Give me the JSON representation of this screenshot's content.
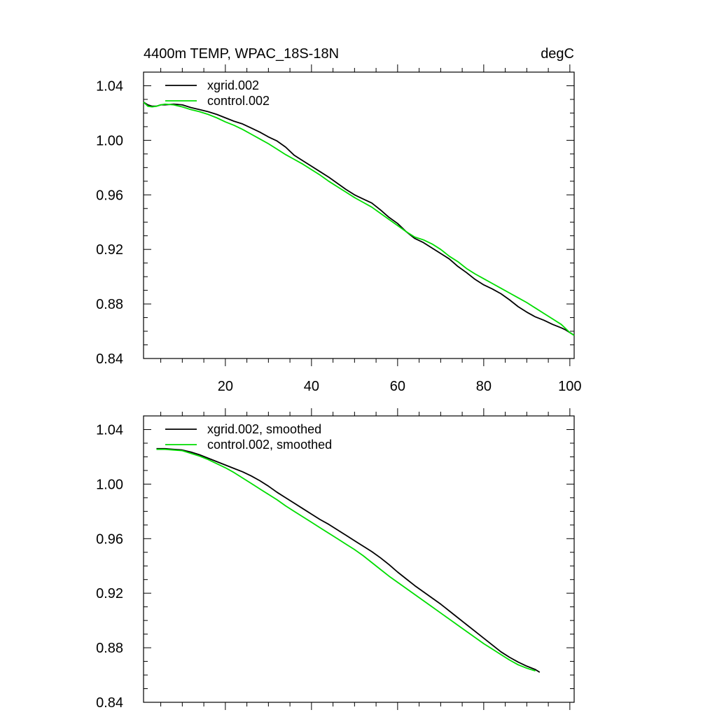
{
  "chart_data": [
    {
      "type": "line",
      "title": "4400m TEMP, WPAC_18S-18N",
      "units": "degC",
      "xlim": [
        1,
        101
      ],
      "ylim": [
        0.84,
        1.05
      ],
      "yticks": [
        "0.84",
        "0.88",
        "0.92",
        "0.96",
        "1.00",
        "1.04"
      ],
      "xticks": [
        "20",
        "40",
        "60",
        "80",
        "100"
      ],
      "legend_position": "top-left",
      "series": [
        {
          "name": "xgrid.002",
          "color": "#000000",
          "points": [
            [
              1,
              1.028
            ],
            [
              2,
              1.026
            ],
            [
              3,
              1.025
            ],
            [
              4,
              1.025
            ],
            [
              5,
              1.026
            ],
            [
              6,
              1.026
            ],
            [
              8,
              1.0265
            ],
            [
              10,
              1.026
            ],
            [
              12,
              1.024
            ],
            [
              14,
              1.0225
            ],
            [
              16,
              1.021
            ],
            [
              18,
              1.019
            ],
            [
              20,
              1.0165
            ],
            [
              22,
              1.014
            ],
            [
              24,
              1.012
            ],
            [
              26,
              1.009
            ],
            [
              28,
              1.006
            ],
            [
              30,
              1.0025
            ],
            [
              32,
              0.9995
            ],
            [
              34,
              0.995
            ],
            [
              36,
              0.989
            ],
            [
              38,
              0.985
            ],
            [
              40,
              0.981
            ],
            [
              42,
              0.977
            ],
            [
              44,
              0.973
            ],
            [
              46,
              0.9685
            ],
            [
              48,
              0.964
            ],
            [
              50,
              0.96
            ],
            [
              52,
              0.957
            ],
            [
              54,
              0.954
            ],
            [
              56,
              0.949
            ],
            [
              58,
              0.9435
            ],
            [
              60,
              0.939
            ],
            [
              62,
              0.933
            ],
            [
              64,
              0.928
            ],
            [
              66,
              0.925
            ],
            [
              68,
              0.921
            ],
            [
              70,
              0.917
            ],
            [
              72,
              0.913
            ],
            [
              74,
              0.9075
            ],
            [
              76,
              0.903
            ],
            [
              78,
              0.898
            ],
            [
              80,
              0.894
            ],
            [
              82,
              0.891
            ],
            [
              84,
              0.8875
            ],
            [
              86,
              0.883
            ],
            [
              88,
              0.878
            ],
            [
              90,
              0.874
            ],
            [
              92,
              0.8705
            ],
            [
              94,
              0.868
            ],
            [
              96,
              0.865
            ],
            [
              98,
              0.8625
            ],
            [
              99,
              0.861
            ],
            [
              100,
              0.859
            ],
            [
              101,
              0.857
            ]
          ]
        },
        {
          "name": "control.002",
          "color": "#00dd00",
          "points": [
            [
              1,
              1.028
            ],
            [
              2,
              1.025
            ],
            [
              3,
              1.0245
            ],
            [
              4,
              1.025
            ],
            [
              5,
              1.026
            ],
            [
              6,
              1.0265
            ],
            [
              8,
              1.026
            ],
            [
              10,
              1.0245
            ],
            [
              12,
              1.0225
            ],
            [
              14,
              1.021
            ],
            [
              16,
              1.019
            ],
            [
              18,
              1.0165
            ],
            [
              20,
              1.0135
            ],
            [
              22,
              1.011
            ],
            [
              24,
              1.008
            ],
            [
              26,
              1.0045
            ],
            [
              28,
              1.001
            ],
            [
              30,
              0.9975
            ],
            [
              32,
              0.9935
            ],
            [
              34,
              0.9895
            ],
            [
              36,
              0.986
            ],
            [
              38,
              0.9825
            ],
            [
              40,
              0.9785
            ],
            [
              42,
              0.9745
            ],
            [
              44,
              0.97
            ],
            [
              46,
              0.966
            ],
            [
              48,
              0.962
            ],
            [
              50,
              0.958
            ],
            [
              52,
              0.9545
            ],
            [
              54,
              0.951
            ],
            [
              56,
              0.9465
            ],
            [
              58,
              0.942
            ],
            [
              60,
              0.9375
            ],
            [
              62,
              0.933
            ],
            [
              64,
              0.929
            ],
            [
              66,
              0.927
            ],
            [
              68,
              0.924
            ],
            [
              70,
              0.92
            ],
            [
              72,
              0.915
            ],
            [
              74,
              0.911
            ],
            [
              76,
              0.906
            ],
            [
              78,
              0.902
            ],
            [
              80,
              0.8985
            ],
            [
              82,
              0.895
            ],
            [
              84,
              0.8915
            ],
            [
              86,
              0.888
            ],
            [
              88,
              0.8845
            ],
            [
              90,
              0.881
            ],
            [
              92,
              0.877
            ],
            [
              94,
              0.873
            ],
            [
              96,
              0.869
            ],
            [
              98,
              0.865
            ],
            [
              99,
              0.862
            ],
            [
              100,
              0.859
            ],
            [
              101,
              0.857
            ]
          ]
        }
      ]
    },
    {
      "type": "line",
      "xlim": [
        1,
        101
      ],
      "ylim": [
        0.84,
        1.05
      ],
      "yticks": [
        "0.84",
        "0.88",
        "0.92",
        "0.96",
        "1.00",
        "1.04"
      ],
      "legend_position": "top-left",
      "series": [
        {
          "name": "xgrid.002, smoothed",
          "color": "#000000",
          "points": [
            [
              4,
              1.026
            ],
            [
              6,
              1.026
            ],
            [
              8,
              1.0255
            ],
            [
              10,
              1.025
            ],
            [
              12,
              1.0235
            ],
            [
              14,
              1.0215
            ],
            [
              16,
              1.019
            ],
            [
              18,
              1.0165
            ],
            [
              20,
              1.014
            ],
            [
              22,
              1.0115
            ],
            [
              24,
              1.009
            ],
            [
              26,
              1.006
            ],
            [
              28,
              1.0025
            ],
            [
              30,
              0.9985
            ],
            [
              32,
              0.994
            ],
            [
              34,
              0.99
            ],
            [
              36,
              0.986
            ],
            [
              38,
              0.982
            ],
            [
              40,
              0.978
            ],
            [
              42,
              0.974
            ],
            [
              44,
              0.9705
            ],
            [
              46,
              0.9665
            ],
            [
              48,
              0.9625
            ],
            [
              50,
              0.9585
            ],
            [
              52,
              0.9545
            ],
            [
              54,
              0.9505
            ],
            [
              56,
              0.946
            ],
            [
              58,
              0.941
            ],
            [
              60,
              0.9355
            ],
            [
              62,
              0.9305
            ],
            [
              64,
              0.9255
            ],
            [
              66,
              0.921
            ],
            [
              68,
              0.9165
            ],
            [
              70,
              0.912
            ],
            [
              72,
              0.907
            ],
            [
              74,
              0.902
            ],
            [
              76,
              0.897
            ],
            [
              78,
              0.892
            ],
            [
              80,
              0.887
            ],
            [
              82,
              0.882
            ],
            [
              84,
              0.877
            ],
            [
              86,
              0.873
            ],
            [
              88,
              0.8695
            ],
            [
              90,
              0.8665
            ],
            [
              92,
              0.864
            ],
            [
              93,
              0.862
            ]
          ]
        },
        {
          "name": "control.002, smoothed",
          "color": "#00dd00",
          "points": [
            [
              4,
              1.0255
            ],
            [
              6,
              1.0255
            ],
            [
              8,
              1.025
            ],
            [
              10,
              1.0245
            ],
            [
              12,
              1.0225
            ],
            [
              14,
              1.0205
            ],
            [
              16,
              1.018
            ],
            [
              18,
              1.015
            ],
            [
              20,
              1.012
            ],
            [
              22,
              1.0085
            ],
            [
              24,
              1.0045
            ],
            [
              26,
              1.0005
            ],
            [
              28,
              0.9965
            ],
            [
              30,
              0.9925
            ],
            [
              32,
              0.9885
            ],
            [
              34,
              0.984
            ],
            [
              36,
              0.98
            ],
            [
              38,
              0.976
            ],
            [
              40,
              0.972
            ],
            [
              42,
              0.968
            ],
            [
              44,
              0.964
            ],
            [
              46,
              0.96
            ],
            [
              48,
              0.956
            ],
            [
              50,
              0.952
            ],
            [
              52,
              0.9475
            ],
            [
              54,
              0.9425
            ],
            [
              56,
              0.9375
            ],
            [
              58,
              0.9325
            ],
            [
              60,
              0.928
            ],
            [
              62,
              0.9235
            ],
            [
              64,
              0.919
            ],
            [
              66,
              0.9145
            ],
            [
              68,
              0.91
            ],
            [
              70,
              0.9055
            ],
            [
              72,
              0.901
            ],
            [
              74,
              0.8965
            ],
            [
              76,
              0.892
            ],
            [
              78,
              0.8875
            ],
            [
              80,
              0.883
            ],
            [
              82,
              0.879
            ],
            [
              84,
              0.875
            ],
            [
              86,
              0.871
            ],
            [
              88,
              0.8675
            ],
            [
              90,
              0.865
            ],
            [
              92,
              0.863
            ]
          ]
        }
      ]
    }
  ]
}
